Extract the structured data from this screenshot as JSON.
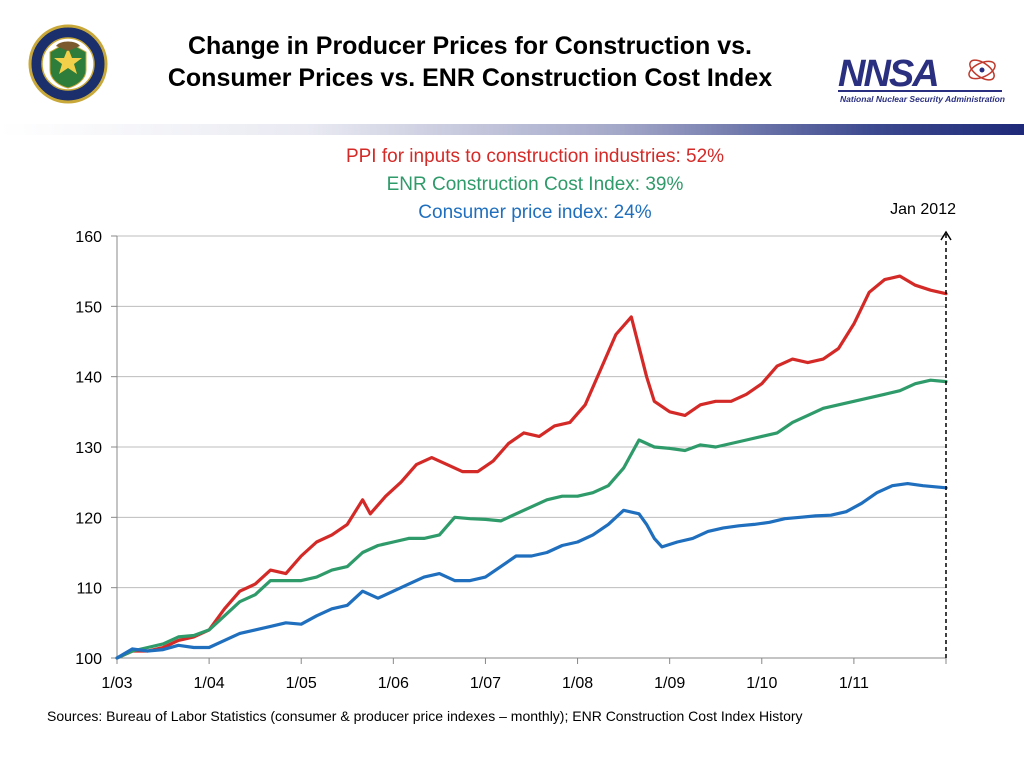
{
  "header": {
    "title_line1": "Change in Producer Prices for Construction vs.",
    "title_line2": "Consumer Prices vs. ENR Construction Cost Index",
    "left_logo_text": "DEPARTMENT OF ENERGY · UNITED STATES OF AMERICA",
    "right_logo_text": "NNSA",
    "right_logo_caption": "National Nuclear Security Administration"
  },
  "colors": {
    "ppi": "#d42a27",
    "enr": "#2f9a6a",
    "cpi": "#1f6fbe",
    "grid": "#bdbdbd",
    "brand_navy": "#2a2f7f"
  },
  "annotations": {
    "ppi": "PPI for inputs to construction industries: 52%",
    "enr": "ENR Construction Cost Index: 39%",
    "cpi": "Consumer price index: 24%",
    "marker": "Jan 2012"
  },
  "footer": {
    "sources": "Sources:   Bureau of Labor Statistics (consumer & producer price indexes – monthly); ENR Construction Cost Index History"
  },
  "chart_data": {
    "type": "line",
    "grid": "horizontal",
    "ylim": [
      100,
      160
    ],
    "yticks": [
      100,
      110,
      120,
      130,
      140,
      150,
      160
    ],
    "xlim": [
      "2003-01",
      "2012-01"
    ],
    "xticks": [
      "2003-01",
      "2004-01",
      "2005-01",
      "2006-01",
      "2007-01",
      "2008-01",
      "2009-01",
      "2010-01",
      "2011-01"
    ],
    "xtick_labels": [
      "1/03",
      "1/04",
      "1/05",
      "1/06",
      "1/07",
      "1/08",
      "1/09",
      "1/10",
      "1/11"
    ],
    "marker": {
      "x": "2012-01",
      "label": "Jan 2012",
      "style": "dashed-arrow"
    },
    "series": [
      {
        "name": "PPI for inputs to construction industries",
        "color_key": "ppi",
        "points": [
          [
            "2003-01",
            100.0
          ],
          [
            "2003-03",
            101.0
          ],
          [
            "2003-05",
            101.0
          ],
          [
            "2003-07",
            101.5
          ],
          [
            "2003-09",
            102.5
          ],
          [
            "2003-11",
            103.0
          ],
          [
            "2004-01",
            104.0
          ],
          [
            "2004-03",
            107.0
          ],
          [
            "2004-05",
            109.5
          ],
          [
            "2004-07",
            110.5
          ],
          [
            "2004-09",
            112.5
          ],
          [
            "2004-11",
            112.0
          ],
          [
            "2005-01",
            114.5
          ],
          [
            "2005-03",
            116.5
          ],
          [
            "2005-05",
            117.5
          ],
          [
            "2005-07",
            119.0
          ],
          [
            "2005-09",
            122.5
          ],
          [
            "2005-10",
            120.5
          ],
          [
            "2005-12",
            123.0
          ],
          [
            "2006-02",
            125.0
          ],
          [
            "2006-04",
            127.5
          ],
          [
            "2006-06",
            128.5
          ],
          [
            "2006-08",
            127.5
          ],
          [
            "2006-10",
            126.5
          ],
          [
            "2006-12",
            126.5
          ],
          [
            "2007-02",
            128.0
          ],
          [
            "2007-04",
            130.5
          ],
          [
            "2007-06",
            132.0
          ],
          [
            "2007-08",
            131.5
          ],
          [
            "2007-10",
            133.0
          ],
          [
            "2007-12",
            133.5
          ],
          [
            "2008-02",
            136.0
          ],
          [
            "2008-04",
            141.0
          ],
          [
            "2008-06",
            146.0
          ],
          [
            "2008-08",
            148.5
          ],
          [
            "2008-10",
            140.0
          ],
          [
            "2008-11",
            136.5
          ],
          [
            "2009-01",
            135.0
          ],
          [
            "2009-03",
            134.5
          ],
          [
            "2009-05",
            136.0
          ],
          [
            "2009-07",
            136.5
          ],
          [
            "2009-09",
            136.5
          ],
          [
            "2009-11",
            137.5
          ],
          [
            "2010-01",
            139.0
          ],
          [
            "2010-03",
            141.5
          ],
          [
            "2010-05",
            142.5
          ],
          [
            "2010-07",
            142.0
          ],
          [
            "2010-09",
            142.5
          ],
          [
            "2010-11",
            144.0
          ],
          [
            "2011-01",
            147.5
          ],
          [
            "2011-03",
            152.0
          ],
          [
            "2011-05",
            153.8
          ],
          [
            "2011-07",
            154.3
          ],
          [
            "2011-09",
            153.0
          ],
          [
            "2011-11",
            152.3
          ],
          [
            "2012-01",
            151.8
          ]
        ]
      },
      {
        "name": "ENR Construction Cost Index",
        "color_key": "enr",
        "points": [
          [
            "2003-01",
            100.0
          ],
          [
            "2003-03",
            101.0
          ],
          [
            "2003-05",
            101.5
          ],
          [
            "2003-07",
            102.0
          ],
          [
            "2003-09",
            103.0
          ],
          [
            "2003-11",
            103.2
          ],
          [
            "2004-01",
            104.0
          ],
          [
            "2004-03",
            106.0
          ],
          [
            "2004-05",
            108.0
          ],
          [
            "2004-07",
            109.0
          ],
          [
            "2004-09",
            111.0
          ],
          [
            "2004-11",
            111.0
          ],
          [
            "2005-01",
            111.0
          ],
          [
            "2005-03",
            111.5
          ],
          [
            "2005-05",
            112.5
          ],
          [
            "2005-07",
            113.0
          ],
          [
            "2005-09",
            115.0
          ],
          [
            "2005-11",
            116.0
          ],
          [
            "2006-01",
            116.5
          ],
          [
            "2006-03",
            117.0
          ],
          [
            "2006-05",
            117.0
          ],
          [
            "2006-07",
            117.5
          ],
          [
            "2006-09",
            120.0
          ],
          [
            "2006-11",
            119.8
          ],
          [
            "2007-01",
            119.7
          ],
          [
            "2007-03",
            119.5
          ],
          [
            "2007-05",
            120.5
          ],
          [
            "2007-07",
            121.5
          ],
          [
            "2007-09",
            122.5
          ],
          [
            "2007-11",
            123.0
          ],
          [
            "2008-01",
            123.0
          ],
          [
            "2008-03",
            123.5
          ],
          [
            "2008-05",
            124.5
          ],
          [
            "2008-07",
            127.0
          ],
          [
            "2008-09",
            131.0
          ],
          [
            "2008-11",
            130.0
          ],
          [
            "2009-01",
            129.8
          ],
          [
            "2009-03",
            129.5
          ],
          [
            "2009-05",
            130.3
          ],
          [
            "2009-07",
            130.0
          ],
          [
            "2009-09",
            130.5
          ],
          [
            "2009-11",
            131.0
          ],
          [
            "2010-01",
            131.5
          ],
          [
            "2010-03",
            132.0
          ],
          [
            "2010-05",
            133.5
          ],
          [
            "2010-07",
            134.5
          ],
          [
            "2010-09",
            135.5
          ],
          [
            "2010-11",
            136.0
          ],
          [
            "2011-01",
            136.5
          ],
          [
            "2011-03",
            137.0
          ],
          [
            "2011-05",
            137.5
          ],
          [
            "2011-07",
            138.0
          ],
          [
            "2011-09",
            139.0
          ],
          [
            "2011-11",
            139.5
          ],
          [
            "2012-01",
            139.3
          ]
        ]
      },
      {
        "name": "Consumer price index",
        "color_key": "cpi",
        "points": [
          [
            "2003-01",
            100.0
          ],
          [
            "2003-03",
            101.3
          ],
          [
            "2003-05",
            101.0
          ],
          [
            "2003-07",
            101.2
          ],
          [
            "2003-09",
            101.8
          ],
          [
            "2003-11",
            101.5
          ],
          [
            "2004-01",
            101.5
          ],
          [
            "2004-03",
            102.5
          ],
          [
            "2004-05",
            103.5
          ],
          [
            "2004-07",
            104.0
          ],
          [
            "2004-09",
            104.5
          ],
          [
            "2004-11",
            105.0
          ],
          [
            "2005-01",
            104.8
          ],
          [
            "2005-03",
            106.0
          ],
          [
            "2005-05",
            107.0
          ],
          [
            "2005-07",
            107.5
          ],
          [
            "2005-09",
            109.5
          ],
          [
            "2005-11",
            108.5
          ],
          [
            "2006-01",
            109.5
          ],
          [
            "2006-03",
            110.5
          ],
          [
            "2006-05",
            111.5
          ],
          [
            "2006-07",
            112.0
          ],
          [
            "2006-09",
            111.0
          ],
          [
            "2006-11",
            111.0
          ],
          [
            "2007-01",
            111.5
          ],
          [
            "2007-03",
            113.0
          ],
          [
            "2007-05",
            114.5
          ],
          [
            "2007-07",
            114.5
          ],
          [
            "2007-09",
            115.0
          ],
          [
            "2007-11",
            116.0
          ],
          [
            "2008-01",
            116.5
          ],
          [
            "2008-03",
            117.5
          ],
          [
            "2008-05",
            119.0
          ],
          [
            "2008-07",
            121.0
          ],
          [
            "2008-09",
            120.5
          ],
          [
            "2008-10",
            119.0
          ],
          [
            "2008-11",
            117.0
          ],
          [
            "2008-12",
            115.8
          ],
          [
            "2009-02",
            116.5
          ],
          [
            "2009-04",
            117.0
          ],
          [
            "2009-06",
            118.0
          ],
          [
            "2009-08",
            118.5
          ],
          [
            "2009-10",
            118.8
          ],
          [
            "2009-12",
            119.0
          ],
          [
            "2010-02",
            119.3
          ],
          [
            "2010-04",
            119.8
          ],
          [
            "2010-06",
            120.0
          ],
          [
            "2010-08",
            120.2
          ],
          [
            "2010-10",
            120.3
          ],
          [
            "2010-12",
            120.8
          ],
          [
            "2011-02",
            122.0
          ],
          [
            "2011-04",
            123.5
          ],
          [
            "2011-06",
            124.5
          ],
          [
            "2011-08",
            124.8
          ],
          [
            "2011-10",
            124.5
          ],
          [
            "2012-01",
            124.2
          ]
        ]
      }
    ]
  }
}
